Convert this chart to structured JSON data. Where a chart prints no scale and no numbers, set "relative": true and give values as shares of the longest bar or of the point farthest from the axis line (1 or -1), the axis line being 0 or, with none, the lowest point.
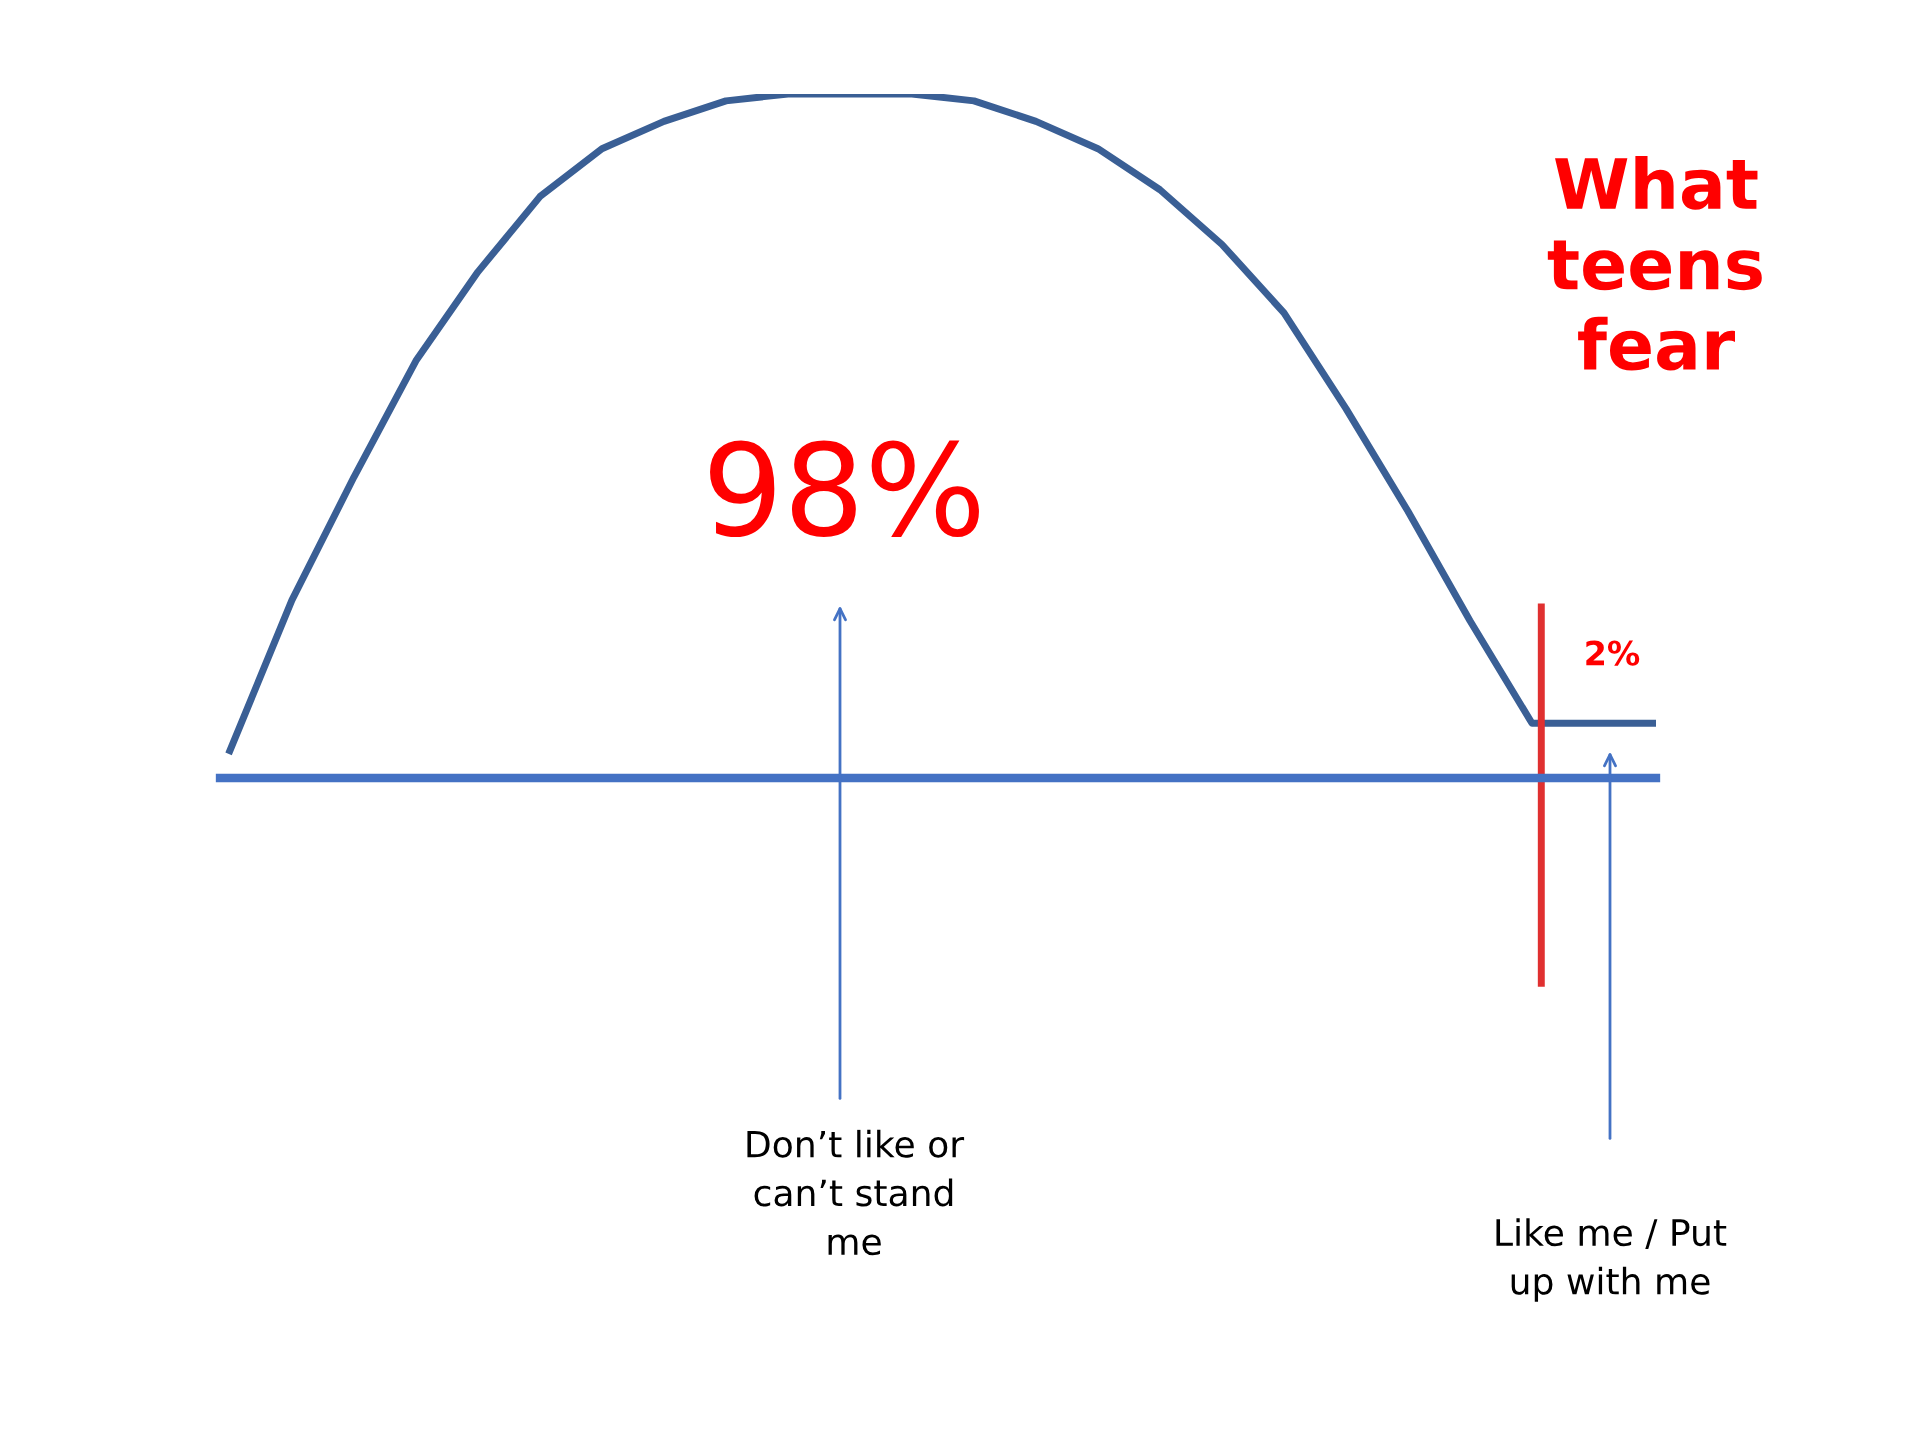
{
  "chart_data": {
    "type": "line",
    "title": "What teens fear",
    "relative": true,
    "categories": [
      null,
      null,
      null,
      null,
      null,
      null,
      null,
      null,
      null,
      null,
      null,
      null,
      null,
      null,
      null,
      null,
      null,
      null,
      null,
      null,
      null,
      null,
      null,
      null
    ],
    "series": [
      {
        "color": "#3a5f95",
        "values": [
          0.04,
          0.26,
          0.44,
          0.61,
          0.74,
          0.85,
          0.92,
          0.96,
          0.99,
          1.0,
          1.0,
          1.0,
          0.99,
          0.96,
          0.92,
          0.86,
          0.78,
          0.68,
          0.54,
          0.39,
          0.23,
          0.08,
          0.08,
          0.08
        ]
      }
    ],
    "annotations": [
      "98%",
      "2%",
      "Don’t like or can’t stand me",
      "Like me / Put up with me"
    ],
    "grid": false,
    "legend": false,
    "marker": "none",
    "line_style": "solid"
  }
}
